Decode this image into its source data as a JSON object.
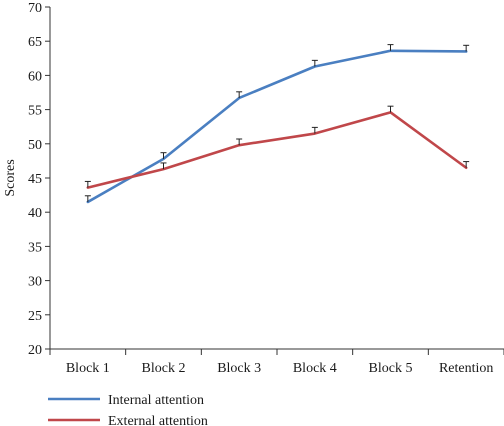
{
  "chart_data": {
    "type": "line",
    "title": "",
    "xlabel": "",
    "ylabel": "Scores",
    "ylim": [
      20,
      70
    ],
    "yticks": [
      20,
      25,
      30,
      35,
      40,
      45,
      50,
      55,
      60,
      65,
      70
    ],
    "categories": [
      "Block 1",
      "Block 2",
      "Block 3",
      "Block 4",
      "Block 5",
      "Retention"
    ],
    "grid": false,
    "legend_position": "bottom-left",
    "series": [
      {
        "name": "Internal attention",
        "color": "#4a7fc1",
        "values": [
          41.5,
          47.8,
          56.7,
          61.3,
          63.6,
          63.5
        ],
        "error": [
          0.9,
          0.9,
          0.9,
          0.9,
          0.9,
          0.9
        ]
      },
      {
        "name": "External attention",
        "color": "#c0474a",
        "values": [
          43.6,
          46.3,
          49.8,
          51.5,
          54.6,
          46.5
        ],
        "error": [
          0.9,
          0.9,
          0.9,
          0.9,
          0.9,
          0.9
        ]
      }
    ]
  }
}
